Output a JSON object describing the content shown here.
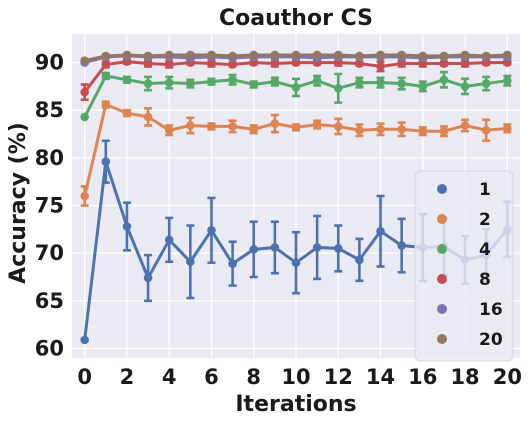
{
  "chart_data": {
    "type": "line",
    "title": "Coauthor CS",
    "xlabel": "Iterations",
    "ylabel": "Accuracy (%)",
    "xlim": [
      -0.6,
      20.6
    ],
    "ylim": [
      59,
      93
    ],
    "xticks": [
      0,
      2,
      4,
      6,
      8,
      10,
      12,
      14,
      16,
      18,
      20
    ],
    "yticks": [
      60,
      65,
      70,
      75,
      80,
      85,
      90
    ],
    "grid": true,
    "legend_position": "right",
    "x": [
      0,
      1,
      2,
      3,
      4,
      5,
      6,
      7,
      8,
      9,
      10,
      11,
      12,
      13,
      14,
      15,
      16,
      17,
      18,
      19,
      20
    ],
    "series": [
      {
        "name": "1",
        "color": "#4c72b0",
        "values": [
          60.9,
          79.6,
          72.8,
          67.4,
          71.4,
          69.1,
          72.4,
          68.9,
          70.4,
          70.6,
          69.0,
          70.6,
          70.5,
          69.3,
          72.3,
          70.8,
          70.6,
          70.7,
          69.3,
          69.8,
          72.5
        ],
        "errors": [
          0.0,
          2.2,
          2.5,
          2.4,
          2.3,
          3.8,
          3.4,
          2.3,
          2.9,
          2.7,
          3.2,
          3.3,
          2.4,
          2.2,
          3.7,
          2.8,
          3.5,
          3.0,
          2.5,
          2.7,
          2.9
        ]
      },
      {
        "name": "2",
        "color": "#dd8452",
        "values": [
          76.0,
          85.6,
          84.7,
          84.3,
          82.9,
          83.4,
          83.3,
          83.3,
          83.0,
          83.6,
          83.2,
          83.5,
          83.3,
          82.9,
          83.0,
          83.0,
          82.8,
          82.8,
          83.4,
          82.9,
          83.1
        ],
        "errors": [
          1.0,
          0.3,
          0.3,
          0.9,
          0.5,
          0.8,
          0.3,
          0.6,
          0.4,
          0.9,
          0.3,
          0.4,
          0.8,
          0.6,
          0.6,
          0.7,
          0.4,
          0.5,
          0.6,
          1.1,
          0.4
        ]
      },
      {
        "name": "4",
        "color": "#55a868",
        "values": [
          84.3,
          88.6,
          88.2,
          87.8,
          87.9,
          87.8,
          88.0,
          88.2,
          87.7,
          88.0,
          87.4,
          88.1,
          87.3,
          87.9,
          87.9,
          87.8,
          87.5,
          88.2,
          87.5,
          87.8,
          88.1
        ],
        "errors": [
          0.0,
          0.3,
          0.3,
          0.7,
          0.6,
          0.4,
          0.3,
          0.5,
          0.3,
          0.4,
          0.9,
          0.5,
          1.5,
          0.5,
          0.5,
          0.6,
          0.5,
          0.8,
          0.8,
          0.7,
          0.5
        ]
      },
      {
        "name": "8",
        "color": "#c44e52",
        "values": [
          86.9,
          89.8,
          90.1,
          89.9,
          89.8,
          90.0,
          89.9,
          89.8,
          90.0,
          89.9,
          90.0,
          90.0,
          90.0,
          89.9,
          89.6,
          89.9,
          89.9,
          89.9,
          89.9,
          90.0,
          90.0
        ],
        "errors": [
          0.8,
          0.3,
          0.2,
          0.3,
          0.3,
          0.2,
          0.3,
          0.2,
          0.2,
          0.3,
          0.2,
          0.2,
          0.3,
          0.2,
          0.5,
          0.3,
          0.3,
          0.2,
          0.3,
          0.2,
          0.2
        ]
      },
      {
        "name": "16",
        "color": "#8172b3",
        "values": [
          90.0,
          90.6,
          90.7,
          90.6,
          90.6,
          90.5,
          90.6,
          90.5,
          90.6,
          90.6,
          90.6,
          90.5,
          90.6,
          90.6,
          90.6,
          90.6,
          90.5,
          90.6,
          90.6,
          90.6,
          90.6
        ],
        "errors": [
          0.1,
          0.1,
          0.1,
          0.1,
          0.1,
          0.1,
          0.1,
          0.1,
          0.1,
          0.1,
          0.1,
          0.1,
          0.1,
          0.1,
          0.1,
          0.1,
          0.1,
          0.1,
          0.1,
          0.1,
          0.1
        ]
      },
      {
        "name": "20",
        "color": "#937860",
        "values": [
          90.2,
          90.7,
          90.8,
          90.7,
          90.8,
          90.8,
          90.8,
          90.7,
          90.8,
          90.8,
          90.8,
          90.8,
          90.8,
          90.7,
          90.8,
          90.8,
          90.7,
          90.7,
          90.8,
          90.7,
          90.8
        ],
        "errors": [
          0.1,
          0.1,
          0.1,
          0.1,
          0.1,
          0.1,
          0.1,
          0.1,
          0.1,
          0.1,
          0.1,
          0.1,
          0.1,
          0.1,
          0.1,
          0.1,
          0.1,
          0.1,
          0.1,
          0.1,
          0.1
        ]
      }
    ]
  },
  "style": {
    "plot_background": "#eaeaf2",
    "grid_color": "#ffffff",
    "legend_background": "#eaeaf2",
    "text_color": "#1a1a1a"
  }
}
